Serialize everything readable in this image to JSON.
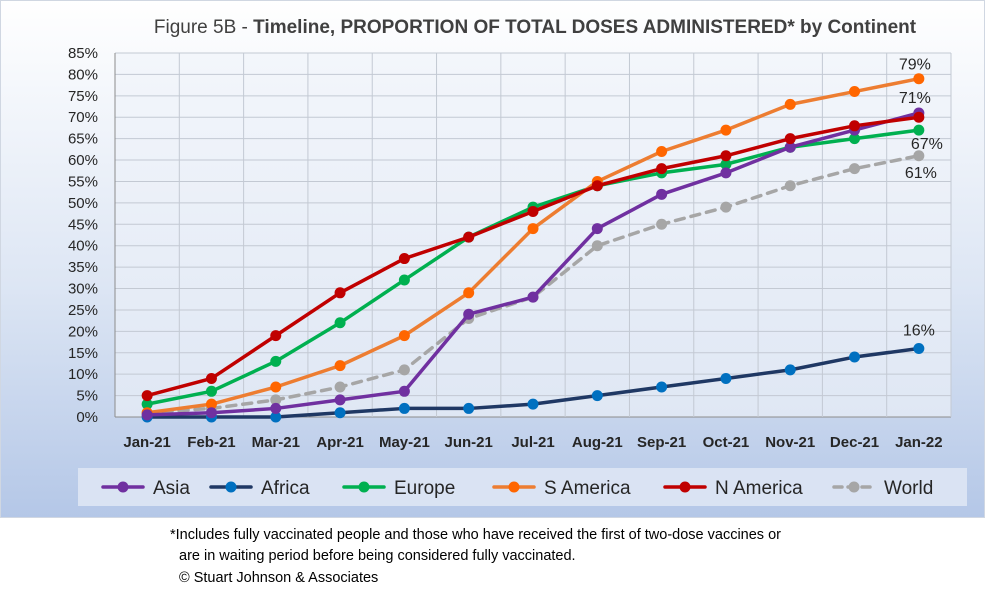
{
  "title_prefix": "Figure 5B - ",
  "title_bold": "Timeline, PROPORTION OF TOTAL DOSES ADMINISTERED* by Continent",
  "footnote": {
    "line1": "*Includes fully vaccinated people and those who have received the first of two-dose vaccines or",
    "line2": "are in waiting period before being considered fully vaccinated.",
    "copyright": "© Stuart Johnson & Associates"
  },
  "chart_data": {
    "type": "line",
    "categories": [
      "Jan-21",
      "Feb-21",
      "Mar-21",
      "Apr-21",
      "May-21",
      "Jun-21",
      "Jul-21",
      "Aug-21",
      "Sep-21",
      "Oct-21",
      "Nov-21",
      "Dec-21",
      "Jan-22"
    ],
    "ylim": [
      0,
      85
    ],
    "ytick_step": 5,
    "ytick_suffix": "%",
    "grid": true,
    "legend_position": "bottom",
    "series": [
      {
        "name": "Asia",
        "color": "#7030a0",
        "dashed": false,
        "values": [
          0.5,
          1,
          2,
          4,
          6,
          24,
          28,
          44,
          52,
          57,
          63,
          67,
          71
        ]
      },
      {
        "name": "Africa",
        "color": "#0070c0",
        "line_color": "#1f3864",
        "dashed": false,
        "values": [
          0,
          0,
          0,
          1,
          2,
          2,
          3,
          5,
          7,
          9,
          11,
          14,
          16
        ]
      },
      {
        "name": "Europe",
        "color": "#00b050",
        "dashed": false,
        "values": [
          3,
          6,
          13,
          22,
          32,
          42,
          49,
          54,
          57,
          59,
          63,
          65,
          67
        ]
      },
      {
        "name": "S America",
        "color": "#ff6600",
        "line_color": "#ed7d31",
        "dashed": false,
        "values": [
          1,
          3,
          7,
          12,
          19,
          29,
          44,
          55,
          62,
          67,
          73,
          76,
          79
        ]
      },
      {
        "name": "N America",
        "color": "#c00000",
        "dashed": false,
        "values": [
          5,
          9,
          19,
          29,
          37,
          42,
          48,
          54,
          58,
          61,
          65,
          68,
          70
        ]
      },
      {
        "name": "World",
        "color": "#a6a6a6",
        "dashed": true,
        "values": [
          1,
          2,
          4,
          7,
          11,
          23,
          28,
          40,
          45,
          49,
          54,
          58,
          61
        ]
      }
    ],
    "annotations": [
      {
        "text": "79%",
        "series": "S America"
      },
      {
        "text": "71%",
        "series": "Asia"
      },
      {
        "text": "67%",
        "series": "Europe"
      },
      {
        "text": "61%",
        "series": "World"
      },
      {
        "text": "16%",
        "series": "Africa"
      }
    ]
  }
}
